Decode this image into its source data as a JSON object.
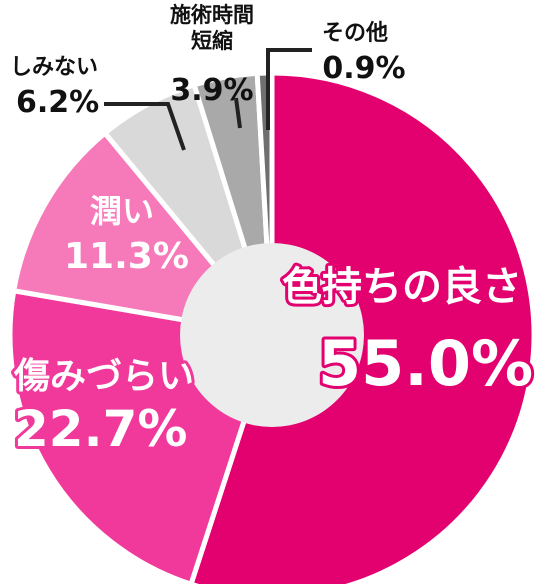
{
  "chart_data": {
    "type": "pie",
    "slices": [
      {
        "label": "色持ちの良さ",
        "value": 55.0,
        "display": "55.0%",
        "color": "#e3006f"
      },
      {
        "label": "傷みづらい",
        "value": 22.7,
        "display": "22.7%",
        "color": "#f0399a"
      },
      {
        "label": "潤い",
        "value": 11.3,
        "display": "11.3%",
        "color": "#f679b9"
      },
      {
        "label": "しみない",
        "value": 6.2,
        "display": "6.2%",
        "color": "#d9d9d9"
      },
      {
        "label": "施術時間短縮",
        "value": 3.9,
        "display": "3.9%",
        "color": "#a9a9a9"
      },
      {
        "label": "その他",
        "value": 0.9,
        "display": "0.9%",
        "color": "#6f6f6f"
      }
    ],
    "center_color": "#ececec"
  }
}
